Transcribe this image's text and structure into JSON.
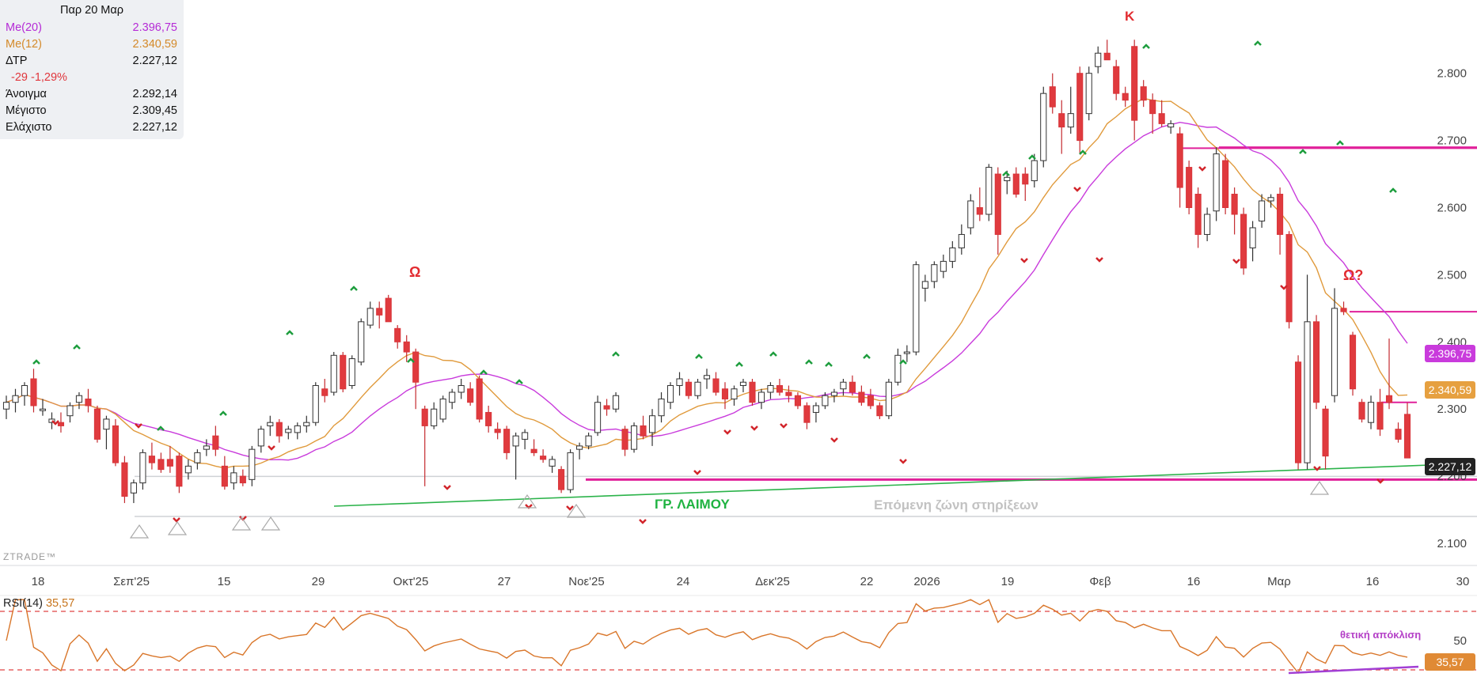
{
  "info_panel": {
    "date": "Παρ 20 Μαρ",
    "ma20": {
      "label": "Me(20)",
      "value": "2.396,75",
      "color": "#b52bd6"
    },
    "ma12": {
      "label": "Me(12)",
      "value": "2.340,59",
      "color": "#d48a2a"
    },
    "close": {
      "label": "ΔΤΡ",
      "value": "2.227,12"
    },
    "change": "-29 -1,29%",
    "open": {
      "label": "Άνοιγμα",
      "value": "2.292,14"
    },
    "high": {
      "label": "Μέγιστο",
      "value": "2.309,45"
    },
    "low": {
      "label": "Ελάχιστο",
      "value": "2.227,12"
    }
  },
  "rsi": {
    "label": "RSI(14)",
    "value": "35,57"
  },
  "badges": {
    "ma20": "2.396,75",
    "ma12": "2.340,59",
    "last": "2.227,12",
    "rsi": "35,57"
  },
  "annotations": {
    "neckline": "ΓΡ. ΛΑΙΜΟΥ",
    "support_zone": "Επόμενη ζώνη στηρίξεων",
    "divergence": "θετική απόκλιση",
    "shoulder_left": "Ω",
    "head": "Κ",
    "shoulder_right": "Ω?"
  },
  "watermark": "ZTRADE™",
  "colors": {
    "up": "#ffffff",
    "down": "#e03a3e",
    "ma20": "#c93bdc",
    "ma12": "#e09a3c",
    "neck": "#2bb34a",
    "level": "#e0219a",
    "rsi": "#d9762a"
  },
  "chart_data": {
    "type": "candlestick",
    "price_axis": {
      "ticks": [
        "2.100",
        "2.200",
        "2.300",
        "2.400",
        "2.500",
        "2.600",
        "2.700",
        "2.800"
      ],
      "range": [
        2060,
        2900
      ]
    },
    "time_axis": {
      "ticks": [
        "18",
        "Σεπ'25",
        "15",
        "29",
        "Οκτ'25",
        "27",
        "Νοε'25",
        "24",
        "Δεκ'25",
        "22",
        "2026",
        "19",
        "Φεβ",
        "16",
        "Μαρ",
        "16",
        "30"
      ]
    },
    "indicators": [
      "Me(20)",
      "Me(12)",
      "RSI(14)"
    ],
    "candles": [
      {
        "o": 2300,
        "h": 2320,
        "l": 2285,
        "c": 2310
      },
      {
        "o": 2310,
        "h": 2330,
        "l": 2295,
        "c": 2320
      },
      {
        "o": 2320,
        "h": 2340,
        "l": 2305,
        "c": 2335
      },
      {
        "o": 2345,
        "h": 2360,
        "l": 2295,
        "c": 2305
      },
      {
        "o": 2300,
        "h": 2315,
        "l": 2290,
        "c": 2300
      },
      {
        "o": 2280,
        "h": 2295,
        "l": 2270,
        "c": 2285
      },
      {
        "o": 2280,
        "h": 2295,
        "l": 2265,
        "c": 2275
      },
      {
        "o": 2290,
        "h": 2310,
        "l": 2280,
        "c": 2305
      },
      {
        "o": 2310,
        "h": 2325,
        "l": 2300,
        "c": 2320
      },
      {
        "o": 2315,
        "h": 2330,
        "l": 2295,
        "c": 2305
      },
      {
        "o": 2300,
        "h": 2305,
        "l": 2250,
        "c": 2255
      },
      {
        "o": 2270,
        "h": 2290,
        "l": 2240,
        "c": 2285
      },
      {
        "o": 2275,
        "h": 2285,
        "l": 2215,
        "c": 2220
      },
      {
        "o": 2220,
        "h": 2230,
        "l": 2160,
        "c": 2170
      },
      {
        "o": 2175,
        "h": 2195,
        "l": 2160,
        "c": 2190
      },
      {
        "o": 2190,
        "h": 2240,
        "l": 2180,
        "c": 2235
      },
      {
        "o": 2230,
        "h": 2250,
        "l": 2210,
        "c": 2220
      },
      {
        "o": 2225,
        "h": 2235,
        "l": 2205,
        "c": 2210
      },
      {
        "o": 2225,
        "h": 2245,
        "l": 2205,
        "c": 2215
      },
      {
        "o": 2230,
        "h": 2235,
        "l": 2175,
        "c": 2185
      },
      {
        "o": 2205,
        "h": 2225,
        "l": 2195,
        "c": 2215
      },
      {
        "o": 2220,
        "h": 2240,
        "l": 2210,
        "c": 2235
      },
      {
        "o": 2240,
        "h": 2255,
        "l": 2230,
        "c": 2245
      },
      {
        "o": 2260,
        "h": 2275,
        "l": 2230,
        "c": 2240
      },
      {
        "o": 2215,
        "h": 2230,
        "l": 2180,
        "c": 2185
      },
      {
        "o": 2190,
        "h": 2215,
        "l": 2180,
        "c": 2205
      },
      {
        "o": 2200,
        "h": 2210,
        "l": 2185,
        "c": 2190
      },
      {
        "o": 2195,
        "h": 2245,
        "l": 2185,
        "c": 2240
      },
      {
        "o": 2245,
        "h": 2275,
        "l": 2235,
        "c": 2270
      },
      {
        "o": 2275,
        "h": 2290,
        "l": 2260,
        "c": 2280
      },
      {
        "o": 2280,
        "h": 2285,
        "l": 2250,
        "c": 2260
      },
      {
        "o": 2265,
        "h": 2275,
        "l": 2255,
        "c": 2270
      },
      {
        "o": 2265,
        "h": 2280,
        "l": 2255,
        "c": 2275
      },
      {
        "o": 2275,
        "h": 2290,
        "l": 2265,
        "c": 2280
      },
      {
        "o": 2280,
        "h": 2340,
        "l": 2275,
        "c": 2335
      },
      {
        "o": 2330,
        "h": 2345,
        "l": 2310,
        "c": 2320
      },
      {
        "o": 2325,
        "h": 2385,
        "l": 2320,
        "c": 2380
      },
      {
        "o": 2380,
        "h": 2385,
        "l": 2325,
        "c": 2330
      },
      {
        "o": 2335,
        "h": 2380,
        "l": 2330,
        "c": 2375
      },
      {
        "o": 2370,
        "h": 2435,
        "l": 2365,
        "c": 2430
      },
      {
        "o": 2425,
        "h": 2460,
        "l": 2420,
        "c": 2450
      },
      {
        "o": 2450,
        "h": 2460,
        "l": 2420,
        "c": 2440
      },
      {
        "o": 2465,
        "h": 2470,
        "l": 2430,
        "c": 2430
      },
      {
        "o": 2420,
        "h": 2425,
        "l": 2390,
        "c": 2400
      },
      {
        "o": 2400,
        "h": 2410,
        "l": 2370,
        "c": 2385
      },
      {
        "o": 2385,
        "h": 2390,
        "l": 2300,
        "c": 2340
      },
      {
        "o": 2300,
        "h": 2305,
        "l": 2185,
        "c": 2275
      },
      {
        "o": 2275,
        "h": 2310,
        "l": 2270,
        "c": 2300
      },
      {
        "o": 2285,
        "h": 2320,
        "l": 2280,
        "c": 2315
      },
      {
        "o": 2310,
        "h": 2330,
        "l": 2300,
        "c": 2325
      },
      {
        "o": 2325,
        "h": 2345,
        "l": 2315,
        "c": 2335
      },
      {
        "o": 2330,
        "h": 2340,
        "l": 2305,
        "c": 2310
      },
      {
        "o": 2345,
        "h": 2350,
        "l": 2280,
        "c": 2285
      },
      {
        "o": 2295,
        "h": 2305,
        "l": 2265,
        "c": 2275
      },
      {
        "o": 2270,
        "h": 2280,
        "l": 2255,
        "c": 2265
      },
      {
        "o": 2270,
        "h": 2275,
        "l": 2225,
        "c": 2235
      },
      {
        "o": 2245,
        "h": 2265,
        "l": 2195,
        "c": 2260
      },
      {
        "o": 2255,
        "h": 2270,
        "l": 2240,
        "c": 2265
      },
      {
        "o": 2240,
        "h": 2255,
        "l": 2230,
        "c": 2235
      },
      {
        "o": 2230,
        "h": 2240,
        "l": 2220,
        "c": 2225
      },
      {
        "o": 2215,
        "h": 2230,
        "l": 2205,
        "c": 2225
      },
      {
        "o": 2210,
        "h": 2215,
        "l": 2175,
        "c": 2180
      },
      {
        "o": 2180,
        "h": 2240,
        "l": 2175,
        "c": 2235
      },
      {
        "o": 2240,
        "h": 2250,
        "l": 2225,
        "c": 2245
      },
      {
        "o": 2245,
        "h": 2265,
        "l": 2240,
        "c": 2260
      },
      {
        "o": 2265,
        "h": 2320,
        "l": 2260,
        "c": 2310
      },
      {
        "o": 2305,
        "h": 2315,
        "l": 2290,
        "c": 2300
      },
      {
        "o": 2300,
        "h": 2325,
        "l": 2295,
        "c": 2320
      },
      {
        "o": 2270,
        "h": 2275,
        "l": 2230,
        "c": 2240
      },
      {
        "o": 2240,
        "h": 2280,
        "l": 2235,
        "c": 2275
      },
      {
        "o": 2275,
        "h": 2290,
        "l": 2255,
        "c": 2260
      },
      {
        "o": 2265,
        "h": 2300,
        "l": 2245,
        "c": 2290
      },
      {
        "o": 2290,
        "h": 2325,
        "l": 2280,
        "c": 2315
      },
      {
        "o": 2310,
        "h": 2340,
        "l": 2300,
        "c": 2335
      },
      {
        "o": 2335,
        "h": 2355,
        "l": 2320,
        "c": 2345
      },
      {
        "o": 2340,
        "h": 2345,
        "l": 2315,
        "c": 2320
      },
      {
        "o": 2320,
        "h": 2345,
        "l": 2315,
        "c": 2340
      },
      {
        "o": 2345,
        "h": 2360,
        "l": 2330,
        "c": 2350
      },
      {
        "o": 2345,
        "h": 2355,
        "l": 2320,
        "c": 2325
      },
      {
        "o": 2330,
        "h": 2340,
        "l": 2300,
        "c": 2315
      },
      {
        "o": 2315,
        "h": 2335,
        "l": 2305,
        "c": 2330
      },
      {
        "o": 2335,
        "h": 2345,
        "l": 2325,
        "c": 2340
      },
      {
        "o": 2340,
        "h": 2345,
        "l": 2305,
        "c": 2310
      },
      {
        "o": 2310,
        "h": 2330,
        "l": 2300,
        "c": 2325
      },
      {
        "o": 2325,
        "h": 2340,
        "l": 2315,
        "c": 2335
      },
      {
        "o": 2335,
        "h": 2345,
        "l": 2320,
        "c": 2325
      },
      {
        "o": 2325,
        "h": 2335,
        "l": 2310,
        "c": 2320
      },
      {
        "o": 2320,
        "h": 2325,
        "l": 2300,
        "c": 2305
      },
      {
        "o": 2305,
        "h": 2310,
        "l": 2270,
        "c": 2280
      },
      {
        "o": 2295,
        "h": 2310,
        "l": 2280,
        "c": 2305
      },
      {
        "o": 2305,
        "h": 2325,
        "l": 2300,
        "c": 2320
      },
      {
        "o": 2320,
        "h": 2330,
        "l": 2310,
        "c": 2325
      },
      {
        "o": 2330,
        "h": 2345,
        "l": 2320,
        "c": 2340
      },
      {
        "o": 2340,
        "h": 2350,
        "l": 2320,
        "c": 2325
      },
      {
        "o": 2325,
        "h": 2335,
        "l": 2305,
        "c": 2310
      },
      {
        "o": 2320,
        "h": 2330,
        "l": 2300,
        "c": 2305
      },
      {
        "o": 2305,
        "h": 2310,
        "l": 2285,
        "c": 2290
      },
      {
        "o": 2290,
        "h": 2345,
        "l": 2285,
        "c": 2340
      },
      {
        "o": 2340,
        "h": 2390,
        "l": 2335,
        "c": 2380
      },
      {
        "o": 2385,
        "h": 2395,
        "l": 2370,
        "c": 2385
      },
      {
        "o": 2385,
        "h": 2520,
        "l": 2380,
        "c": 2515
      },
      {
        "o": 2480,
        "h": 2500,
        "l": 2460,
        "c": 2490
      },
      {
        "o": 2490,
        "h": 2520,
        "l": 2480,
        "c": 2515
      },
      {
        "o": 2505,
        "h": 2530,
        "l": 2495,
        "c": 2520
      },
      {
        "o": 2520,
        "h": 2550,
        "l": 2510,
        "c": 2540
      },
      {
        "o": 2540,
        "h": 2575,
        "l": 2530,
        "c": 2560
      },
      {
        "o": 2570,
        "h": 2620,
        "l": 2560,
        "c": 2610
      },
      {
        "o": 2600,
        "h": 2630,
        "l": 2580,
        "c": 2590
      },
      {
        "o": 2590,
        "h": 2665,
        "l": 2580,
        "c": 2660
      },
      {
        "o": 2650,
        "h": 2660,
        "l": 2530,
        "c": 2560
      },
      {
        "o": 2640,
        "h": 2655,
        "l": 2620,
        "c": 2645
      },
      {
        "o": 2650,
        "h": 2660,
        "l": 2615,
        "c": 2620
      },
      {
        "o": 2650,
        "h": 2660,
        "l": 2610,
        "c": 2635
      },
      {
        "o": 2640,
        "h": 2680,
        "l": 2630,
        "c": 2670
      },
      {
        "o": 2670,
        "h": 2780,
        "l": 2660,
        "c": 2770
      },
      {
        "o": 2780,
        "h": 2800,
        "l": 2740,
        "c": 2750
      },
      {
        "o": 2740,
        "h": 2760,
        "l": 2680,
        "c": 2720
      },
      {
        "o": 2720,
        "h": 2780,
        "l": 2710,
        "c": 2740
      },
      {
        "o": 2800,
        "h": 2810,
        "l": 2680,
        "c": 2700
      },
      {
        "o": 2740,
        "h": 2810,
        "l": 2730,
        "c": 2800
      },
      {
        "o": 2810,
        "h": 2840,
        "l": 2800,
        "c": 2830
      },
      {
        "o": 2830,
        "h": 2850,
        "l": 2820,
        "c": 2820
      },
      {
        "o": 2810,
        "h": 2820,
        "l": 2760,
        "c": 2770
      },
      {
        "o": 2770,
        "h": 2780,
        "l": 2750,
        "c": 2760
      },
      {
        "o": 2840,
        "h": 2850,
        "l": 2700,
        "c": 2730
      },
      {
        "o": 2780,
        "h": 2790,
        "l": 2750,
        "c": 2760
      },
      {
        "o": 2760,
        "h": 2770,
        "l": 2710,
        "c": 2740
      },
      {
        "o": 2740,
        "h": 2760,
        "l": 2720,
        "c": 2725
      },
      {
        "o": 2720,
        "h": 2730,
        "l": 2710,
        "c": 2725
      },
      {
        "o": 2710,
        "h": 2720,
        "l": 2600,
        "c": 2630
      },
      {
        "o": 2660,
        "h": 2670,
        "l": 2590,
        "c": 2600
      },
      {
        "o": 2620,
        "h": 2630,
        "l": 2540,
        "c": 2560
      },
      {
        "o": 2560,
        "h": 2600,
        "l": 2550,
        "c": 2590
      },
      {
        "o": 2595,
        "h": 2690,
        "l": 2580,
        "c": 2680
      },
      {
        "o": 2670,
        "h": 2680,
        "l": 2590,
        "c": 2600
      },
      {
        "o": 2620,
        "h": 2630,
        "l": 2560,
        "c": 2590
      },
      {
        "o": 2590,
        "h": 2600,
        "l": 2500,
        "c": 2510
      },
      {
        "o": 2540,
        "h": 2580,
        "l": 2520,
        "c": 2570
      },
      {
        "o": 2580,
        "h": 2620,
        "l": 2570,
        "c": 2610
      },
      {
        "o": 2610,
        "h": 2620,
        "l": 2600,
        "c": 2615
      },
      {
        "o": 2620,
        "h": 2630,
        "l": 2530,
        "c": 2560
      },
      {
        "o": 2560,
        "h": 2565,
        "l": 2420,
        "c": 2430
      },
      {
        "o": 2370,
        "h": 2380,
        "l": 2210,
        "c": 2220
      },
      {
        "o": 2220,
        "h": 2500,
        "l": 2210,
        "c": 2430
      },
      {
        "o": 2430,
        "h": 2440,
        "l": 2300,
        "c": 2310
      },
      {
        "o": 2300,
        "h": 2305,
        "l": 2210,
        "c": 2230
      },
      {
        "o": 2320,
        "h": 2480,
        "l": 2310,
        "c": 2450
      },
      {
        "o": 2450,
        "h": 2460,
        "l": 2440,
        "c": 2445
      },
      {
        "o": 2410,
        "h": 2415,
        "l": 2320,
        "c": 2330
      },
      {
        "o": 2310,
        "h": 2315,
        "l": 2280,
        "c": 2285
      },
      {
        "o": 2280,
        "h": 2320,
        "l": 2270,
        "c": 2310
      },
      {
        "o": 2310,
        "h": 2330,
        "l": 2260,
        "c": 2270
      },
      {
        "o": 2320,
        "h": 2405,
        "l": 2300,
        "c": 2310
      },
      {
        "o": 2270,
        "h": 2280,
        "l": 2250,
        "c": 2255
      },
      {
        "o": 2292.14,
        "h": 2309.45,
        "l": 2227.12,
        "c": 2227.12
      }
    ],
    "rsi_levels": [
      30,
      70
    ],
    "rsi_ticks": [
      "50"
    ],
    "levels": [
      2705,
      2690,
      2445,
      2310,
      2195
    ]
  }
}
